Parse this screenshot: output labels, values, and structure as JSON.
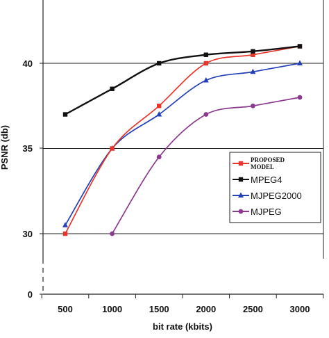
{
  "chart_data": {
    "type": "line",
    "title": "",
    "xlabel": "bit rate (kbits)",
    "ylabel": "PSNR (db)",
    "x": [
      500,
      1000,
      1500,
      2000,
      2500,
      3000
    ],
    "x_tick_labels": [
      "500",
      "1000",
      "1500",
      "2000",
      "2500",
      "3000"
    ],
    "y_tick_labels": [
      "0",
      "30",
      "35",
      "40"
    ],
    "ylim": [
      30,
      43.5
    ],
    "y_axis_break": true,
    "grid": "horizontal at 30, 35, 40",
    "legend": {
      "placement": "right",
      "entries": [
        {
          "line1": "PROPOSED",
          "line2": "MODEL"
        },
        {
          "label": "MPEG4"
        },
        {
          "label": "MJPEG2000"
        },
        {
          "label": "MJPEG"
        }
      ]
    },
    "series": [
      {
        "name": "PROPOSED MODEL",
        "color": "#e8352a",
        "marker": "square",
        "values": [
          30.0,
          35.0,
          37.5,
          40.0,
          40.5,
          41.0
        ]
      },
      {
        "name": "MPEG4",
        "color": "#111111",
        "marker": "square",
        "values": [
          37.0,
          38.5,
          40.0,
          40.5,
          40.7,
          41.0
        ]
      },
      {
        "name": "MJPEG2000",
        "color": "#2340b8",
        "marker": "triangle",
        "values": [
          30.5,
          35.0,
          37.0,
          39.0,
          39.5,
          40.0
        ]
      },
      {
        "name": "MJPEG",
        "color": "#8b3a8f",
        "marker": "circle",
        "values": [
          null,
          30.0,
          34.5,
          37.0,
          37.5,
          38.0
        ]
      }
    ]
  }
}
